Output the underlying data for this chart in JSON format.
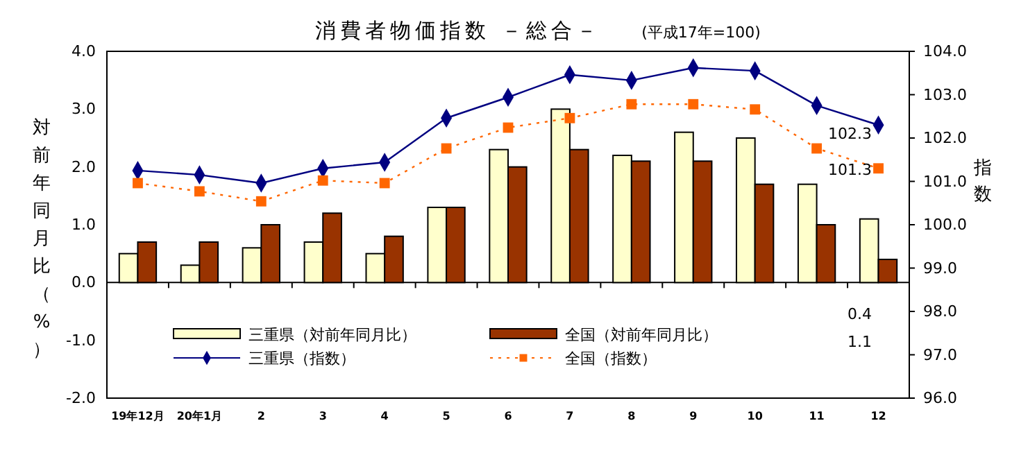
{
  "chart_data": {
    "type": "bar",
    "title": "消費者物価指数 －総合－",
    "subtitle": "(平成17年=100)",
    "ylabel": "対前年同月比（%）",
    "y2label": "指数",
    "categories": [
      "19年12月",
      "20年1月",
      "2",
      "3",
      "4",
      "5",
      "6",
      "7",
      "8",
      "9",
      "10",
      "11",
      "12"
    ],
    "series": [
      {
        "name": "三重県（対前年同月比）",
        "color": "#ffffcc",
        "values": [
          0.5,
          0.3,
          0.6,
          0.7,
          0.5,
          1.3,
          2.3,
          3.0,
          2.2,
          2.6,
          2.5,
          1.7,
          1.1
        ]
      },
      {
        "name": "全国（対前年同月比）",
        "color": "#993300",
        "values": [
          0.7,
          0.7,
          1.0,
          1.2,
          0.8,
          1.3,
          2.0,
          2.3,
          2.1,
          2.1,
          1.7,
          1.0,
          0.4
        ]
      },
      {
        "name": "三重県（指数）",
        "type": "line",
        "axis": "y2",
        "color": "#000080",
        "marker": "diamond",
        "line_style": "solid",
        "values": [
          101.25,
          101.15,
          100.96,
          101.3,
          101.44,
          102.46,
          102.94,
          103.46,
          103.33,
          103.62,
          103.55,
          102.75,
          102.3
        ]
      },
      {
        "name": "全国（指数）",
        "type": "line",
        "axis": "y2",
        "color": "#ff6600",
        "marker": "square",
        "line_style": "dotted",
        "values": [
          100.96,
          100.77,
          100.54,
          101.02,
          100.96,
          101.76,
          102.24,
          102.46,
          102.78,
          102.78,
          102.66,
          101.76,
          101.3
        ]
      }
    ],
    "ylim": [
      -2,
      4
    ],
    "yticks": [
      {
        "value": 4,
        "label": "4.0"
      },
      {
        "value": 3,
        "label": "3.0"
      },
      {
        "value": 2,
        "label": "2.0"
      },
      {
        "value": 1,
        "label": "1.0"
      },
      {
        "value": 0,
        "label": "0.0"
      },
      {
        "value": -1,
        "label": "-1.0"
      },
      {
        "value": -2,
        "label": "-2.0"
      }
    ],
    "y2lim": [
      96,
      104
    ],
    "y2ticks": [
      {
        "value": 104,
        "label": "104.0"
      },
      {
        "value": 103,
        "label": "103.0"
      },
      {
        "value": 102,
        "label": "102.0"
      },
      {
        "value": 101,
        "label": "101.0"
      },
      {
        "value": 100,
        "label": "100.0"
      },
      {
        "value": 99,
        "label": "99.0"
      },
      {
        "value": 98,
        "label": "98.0"
      },
      {
        "value": 97,
        "label": "97.0"
      },
      {
        "value": 96,
        "label": "96.0"
      }
    ],
    "annotations": [
      "102.3",
      "101.3",
      "0.4",
      "1.1"
    ],
    "legend": "bottom"
  }
}
